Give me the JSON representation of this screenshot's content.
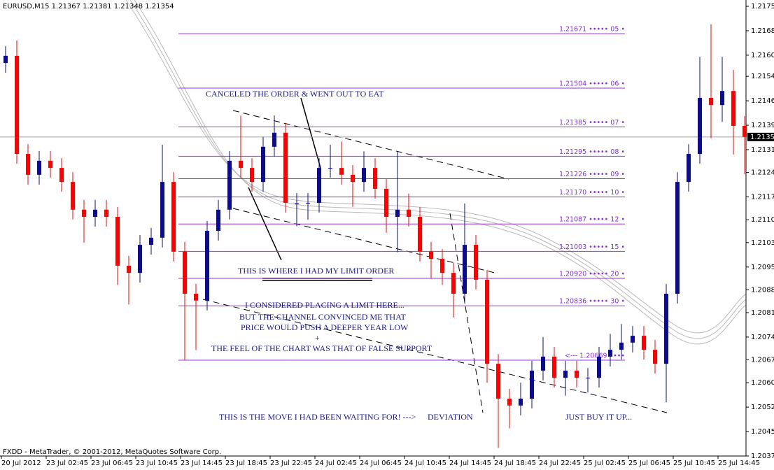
{
  "chart_data": {
    "type": "candlestick",
    "header": "EURUSD,M15  1.21367 1.21381 1.21348 1.21354",
    "footer": "FXDD - MetaTrader, © 2001-2012, MetaQuotes Software Corp.",
    "up_color": "#0a0a96",
    "down_color": "#ff0000",
    "level_color": "#9b30d0",
    "time_labels": [
      "20 Jul 2012",
      "23 Jul 02:45",
      "23 Jul 06:45",
      "23 Jul 10:45",
      "23 Jul 14:45",
      "23 Jul 18:45",
      "23 Jul 22:45",
      "24 Jul 02:45",
      "24 Jul 06:45",
      "24 Jul 10:45",
      "24 Jul 14:45",
      "24 Jul 18:45",
      "24 Jul 22:45",
      "25 Jul 02:45",
      "25 Jul 06:45",
      "25 Jul 10:45",
      "25 Jul 14:45"
    ],
    "ylim": [
      1.20375,
      1.21755
    ],
    "yticks": [
      {
        "value": 1.21755,
        "label": "1.21755"
      },
      {
        "value": 1.2168,
        "label": "1.21680"
      },
      {
        "value": 1.21605,
        "label": "1.21605"
      },
      {
        "value": 1.2154,
        "label": "1.21540"
      },
      {
        "value": 1.21465,
        "label": "1.21465"
      },
      {
        "value": 1.2139,
        "label": "1.21390"
      },
      {
        "value": 1.21315,
        "label": "1.21315"
      },
      {
        "value": 1.21245,
        "label": "1.21245"
      },
      {
        "value": 1.2117,
        "label": "1.21170"
      },
      {
        "value": 1.211,
        "label": "1.21100"
      },
      {
        "value": 1.2103,
        "label": "1.21030"
      },
      {
        "value": 1.20955,
        "label": "1.20955"
      },
      {
        "value": 1.20885,
        "label": "1.20885"
      },
      {
        "value": 1.20815,
        "label": "1.20815"
      },
      {
        "value": 1.2074,
        "label": "1.20740"
      },
      {
        "value": 1.2067,
        "label": "1.20670"
      },
      {
        "value": 1.206,
        "label": "1.20600"
      },
      {
        "value": 1.20525,
        "label": "1.20525"
      },
      {
        "value": 1.2045,
        "label": "1.20450"
      },
      {
        "value": 1.20375,
        "label": "1.20375"
      }
    ],
    "current_price": 1.21354,
    "levels": [
      {
        "value": 1.21671,
        "label": "1.21671 ••••• 05 •"
      },
      {
        "value": 1.21504,
        "label": "1.21504 ••••• 06 •"
      },
      {
        "value": 1.21385,
        "label": "1.21385 ••••• 07 •"
      },
      {
        "value": 1.21295,
        "label": "1.21295 ••••• 08 •"
      },
      {
        "value": 1.21226,
        "label": "1.21226 ••••• 09 •"
      },
      {
        "value": 1.2117,
        "label": "1.21170 ••••• 10 •"
      },
      {
        "value": 1.21087,
        "label": "1.21087 ••••• 12 •"
      },
      {
        "value": 1.21003,
        "label": "1.21003 ••••• 15 •"
      },
      {
        "value": 1.2092,
        "label": "1.20920 ••••• 20 •"
      },
      {
        "value": 1.20836,
        "label": "1.20836 ••••• 30 •"
      },
      {
        "value": 1.20669,
        "label": "<--- 1.20669 ••••"
      }
    ],
    "annotations": [
      "CANCELED THE ORDER & WENT OUT TO EAT",
      "THIS IS WHERE I HAD MY LIMIT ORDER",
      "I CONSIDERED PLACING A LIMIT HERE...",
      "BUT THE CHANNEL CONVINCED ME THAT",
      "PRICE WOULD PUSH A DEEPER YEAR LOW",
      "+",
      "THE FEEL OF THE CHART WAS THAT OF FALSE SUPPORT",
      "THIS IS THE MOVE I HAD BEEN WAITING FOR! --->",
      "DEVIATION",
      "JUST BUY IT UP..."
    ],
    "open": [
      1.21581,
      1.21603,
      1.21302,
      1.21238,
      1.21281,
      1.21259,
      1.21216,
      1.21131,
      1.21109,
      1.21131,
      1.21109,
      1.20959,
      1.20937,
      1.21023,
      1.21045,
      1.21216,
      1.21002,
      1.20873,
      1.20852,
      1.21066,
      1.21131,
      1.21281,
      1.21259,
      1.21216,
      1.21324,
      1.21367,
      1.21152,
      1.21152,
      1.21152,
      1.21259,
      1.21259,
      1.21238,
      1.21216,
      1.21259,
      1.21195,
      1.21109,
      1.21131,
      1.21109,
      1.21002,
      1.2098,
      1.20937,
      1.20873,
      1.21023,
      1.20916,
      1.20658,
      1.20551,
      1.2053,
      1.20551,
      1.20637,
      1.2068,
      1.20615,
      1.20637,
      1.20615,
      1.20615,
      1.2068,
      1.20701,
      1.20723,
      1.20744,
      1.20701,
      1.20658,
      1.20873,
      1.21216,
      1.21302,
      1.21474,
      1.21452,
      1.21495,
      1.21388
    ],
    "high": [
      1.21633,
      1.2165,
      1.21332,
      1.21311,
      1.21311,
      1.21289,
      1.21246,
      1.21161,
      1.21161,
      1.21161,
      1.21139,
      1.20989,
      1.21053,
      1.21075,
      1.2133,
      1.21246,
      1.21032,
      1.20903,
      1.21096,
      1.21161,
      1.21311,
      1.2142,
      1.21289,
      1.21354,
      1.2142,
      1.21397,
      1.21182,
      1.21182,
      1.21289,
      1.2133,
      1.2134,
      1.21268,
      1.2131,
      1.21289,
      1.21225,
      1.2131,
      1.2118,
      1.21139,
      1.21032,
      1.2101,
      1.20967,
      1.2115,
      1.21053,
      1.20946,
      1.20688,
      1.20581,
      1.206,
      1.20667,
      1.2074,
      1.2071,
      1.20667,
      1.20667,
      1.20645,
      1.2071,
      1.2075,
      1.2078,
      1.20774,
      1.20774,
      1.20731,
      1.20903,
      1.21246,
      1.21332,
      1.216,
      1.217,
      1.216,
      1.2156,
      1.21418
    ],
    "low": [
      1.21551,
      1.21272,
      1.21208,
      1.21208,
      1.21229,
      1.21186,
      1.21101,
      1.2103,
      1.21079,
      1.21079,
      1.209,
      1.2084,
      1.20907,
      1.20993,
      1.21015,
      1.20972,
      1.2067,
      1.207,
      1.20822,
      1.21036,
      1.21101,
      1.21229,
      1.21186,
      1.21186,
      1.21294,
      1.21122,
      1.2108,
      1.211,
      1.21122,
      1.21229,
      1.21208,
      1.2114,
      1.21186,
      1.21165,
      1.2106,
      1.21,
      1.21079,
      1.20972,
      1.2092,
      1.209,
      1.208,
      1.20843,
      1.20886,
      1.206,
      1.204,
      1.2046,
      1.205,
      1.20521,
      1.20607,
      1.20585,
      1.2056,
      1.20585,
      1.2057,
      1.20585,
      1.2065,
      1.20671,
      1.20693,
      1.20671,
      1.20628,
      1.2054,
      1.20843,
      1.21186,
      1.21272,
      1.2135,
      1.214,
      1.213,
      1.2124
    ],
    "close": [
      1.21603,
      1.21302,
      1.21238,
      1.21281,
      1.21259,
      1.21216,
      1.21131,
      1.21109,
      1.21131,
      1.21109,
      1.20959,
      1.20937,
      1.21023,
      1.21045,
      1.21216,
      1.21002,
      1.20873,
      1.20852,
      1.21066,
      1.21131,
      1.21281,
      1.21259,
      1.21216,
      1.21324,
      1.21367,
      1.21152,
      1.21152,
      1.21152,
      1.21259,
      1.21259,
      1.21238,
      1.21216,
      1.21259,
      1.21195,
      1.21109,
      1.21131,
      1.21109,
      1.21002,
      1.2098,
      1.20937,
      1.20873,
      1.21023,
      1.20916,
      1.20658,
      1.20551,
      1.2053,
      1.20551,
      1.20637,
      1.2068,
      1.20615,
      1.20637,
      1.20615,
      1.20615,
      1.2068,
      1.20701,
      1.20723,
      1.20744,
      1.20701,
      1.20658,
      1.20873,
      1.21216,
      1.21302,
      1.21474,
      1.21452,
      1.21495,
      1.21388,
      1.21354
    ]
  }
}
